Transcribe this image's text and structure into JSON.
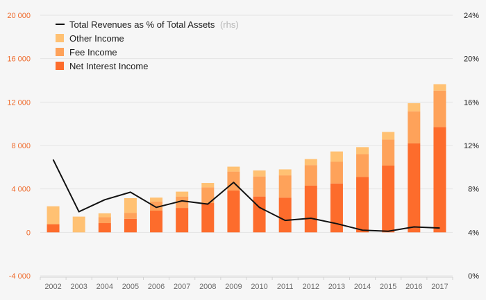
{
  "chart_data": {
    "type": "bar+line",
    "categories": [
      "2002",
      "2003",
      "2004",
      "2005",
      "2006",
      "2007",
      "2008",
      "2009",
      "2010",
      "2011",
      "2012",
      "2013",
      "2014",
      "2015",
      "2016",
      "2017"
    ],
    "series": [
      {
        "name": "Net Interest Income",
        "kind": "stacked-bar",
        "color": "#fd6c2c",
        "values": [
          750,
          0,
          850,
          1250,
          2000,
          2250,
          2700,
          3850,
          3300,
          3200,
          4300,
          4500,
          5100,
          6150,
          8200,
          9700
        ]
      },
      {
        "name": "Fee Income",
        "kind": "stacked-bar",
        "color": "#fea25a",
        "values": [
          0,
          0,
          550,
          550,
          850,
          1050,
          1450,
          1750,
          1850,
          2050,
          1900,
          2000,
          2100,
          2400,
          2950,
          3350
        ]
      },
      {
        "name": "Other Income",
        "kind": "stacked-bar",
        "color": "#ffc173",
        "values": [
          1650,
          1450,
          350,
          1350,
          350,
          450,
          400,
          450,
          550,
          550,
          550,
          950,
          650,
          700,
          750,
          600
        ]
      },
      {
        "name": "Total Revenues as % of Total Assets",
        "name_suffix": "(rhs)",
        "kind": "line",
        "axis": "right",
        "color": "#111111",
        "values": [
          10.7,
          5.9,
          7.0,
          7.7,
          6.3,
          6.9,
          6.6,
          8.6,
          6.3,
          5.1,
          5.3,
          4.8,
          4.2,
          4.1,
          4.5,
          4.4
        ]
      }
    ],
    "left_axis": {
      "ylim": [
        -4000,
        20000
      ],
      "ticks": [
        -4000,
        0,
        4000,
        8000,
        12000,
        16000,
        20000
      ],
      "tick_labels": [
        "-4 000",
        "0",
        "4 000",
        "8 000",
        "12 000",
        "16 000",
        "20 000"
      ],
      "color": "#ef6a2b"
    },
    "right_axis": {
      "ylim": [
        0,
        24
      ],
      "ticks": [
        0,
        4,
        8,
        12,
        16,
        20,
        24
      ],
      "tick_labels": [
        "0%",
        "4%",
        "8%",
        "12%",
        "16%",
        "20%",
        "24%"
      ]
    },
    "grid": true,
    "legend": {
      "placement": "top-left",
      "order": [
        "Total Revenues as % of Total Assets",
        "Other Income",
        "Fee Income",
        "Net Interest Income"
      ]
    }
  }
}
